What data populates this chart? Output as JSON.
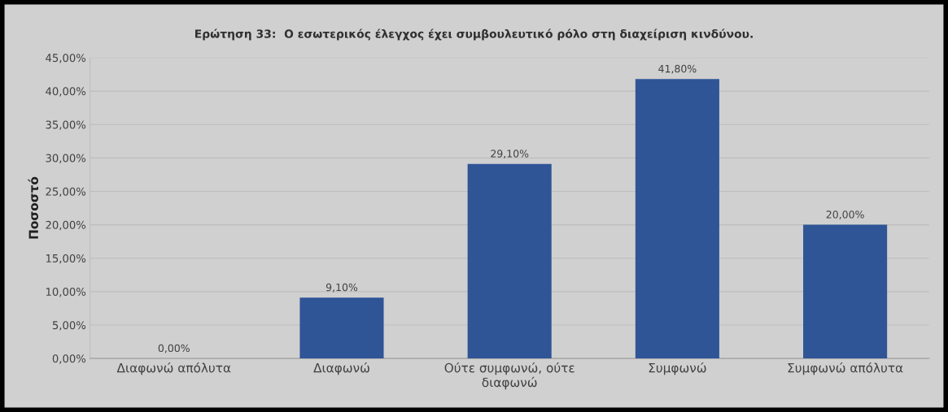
{
  "chart_data": {
    "type": "bar",
    "title": "Ερώτηση 33:  Ο εσωτερικός έλεγχος έχει συμβουλευτικό ρόλο στη διαχείριση κινδύνου.",
    "ylabel": "Ποσοστό",
    "categories": [
      "Διαφωνώ απόλυτα",
      "Διαφωνώ",
      "Ούτε συμφωνώ, ούτε\nδιαφωνώ",
      "Συμφωνώ",
      "Συμφωνώ απόλυτα"
    ],
    "values": [
      0,
      9.1,
      29.1,
      41.8,
      20
    ],
    "value_labels": [
      "0,00%",
      "9,10%",
      "29,10%",
      "41,80%",
      "20,00%"
    ],
    "color": "#2f5597",
    "ylim": [
      0,
      45
    ],
    "yticks": [
      {
        "value": 0,
        "label": "0,00%"
      },
      {
        "value": 5,
        "label": "5,00%"
      },
      {
        "value": 10,
        "label": "10,00%"
      },
      {
        "value": 15,
        "label": "15,00%"
      },
      {
        "value": 20,
        "label": "20,00%"
      },
      {
        "value": 25,
        "label": "25,00%"
      },
      {
        "value": 30,
        "label": "30,00%"
      },
      {
        "value": 35,
        "label": "35,00%"
      },
      {
        "value": 40,
        "label": "40,00%"
      },
      {
        "value": 45,
        "label": "45,00%"
      }
    ],
    "grid": "y"
  }
}
